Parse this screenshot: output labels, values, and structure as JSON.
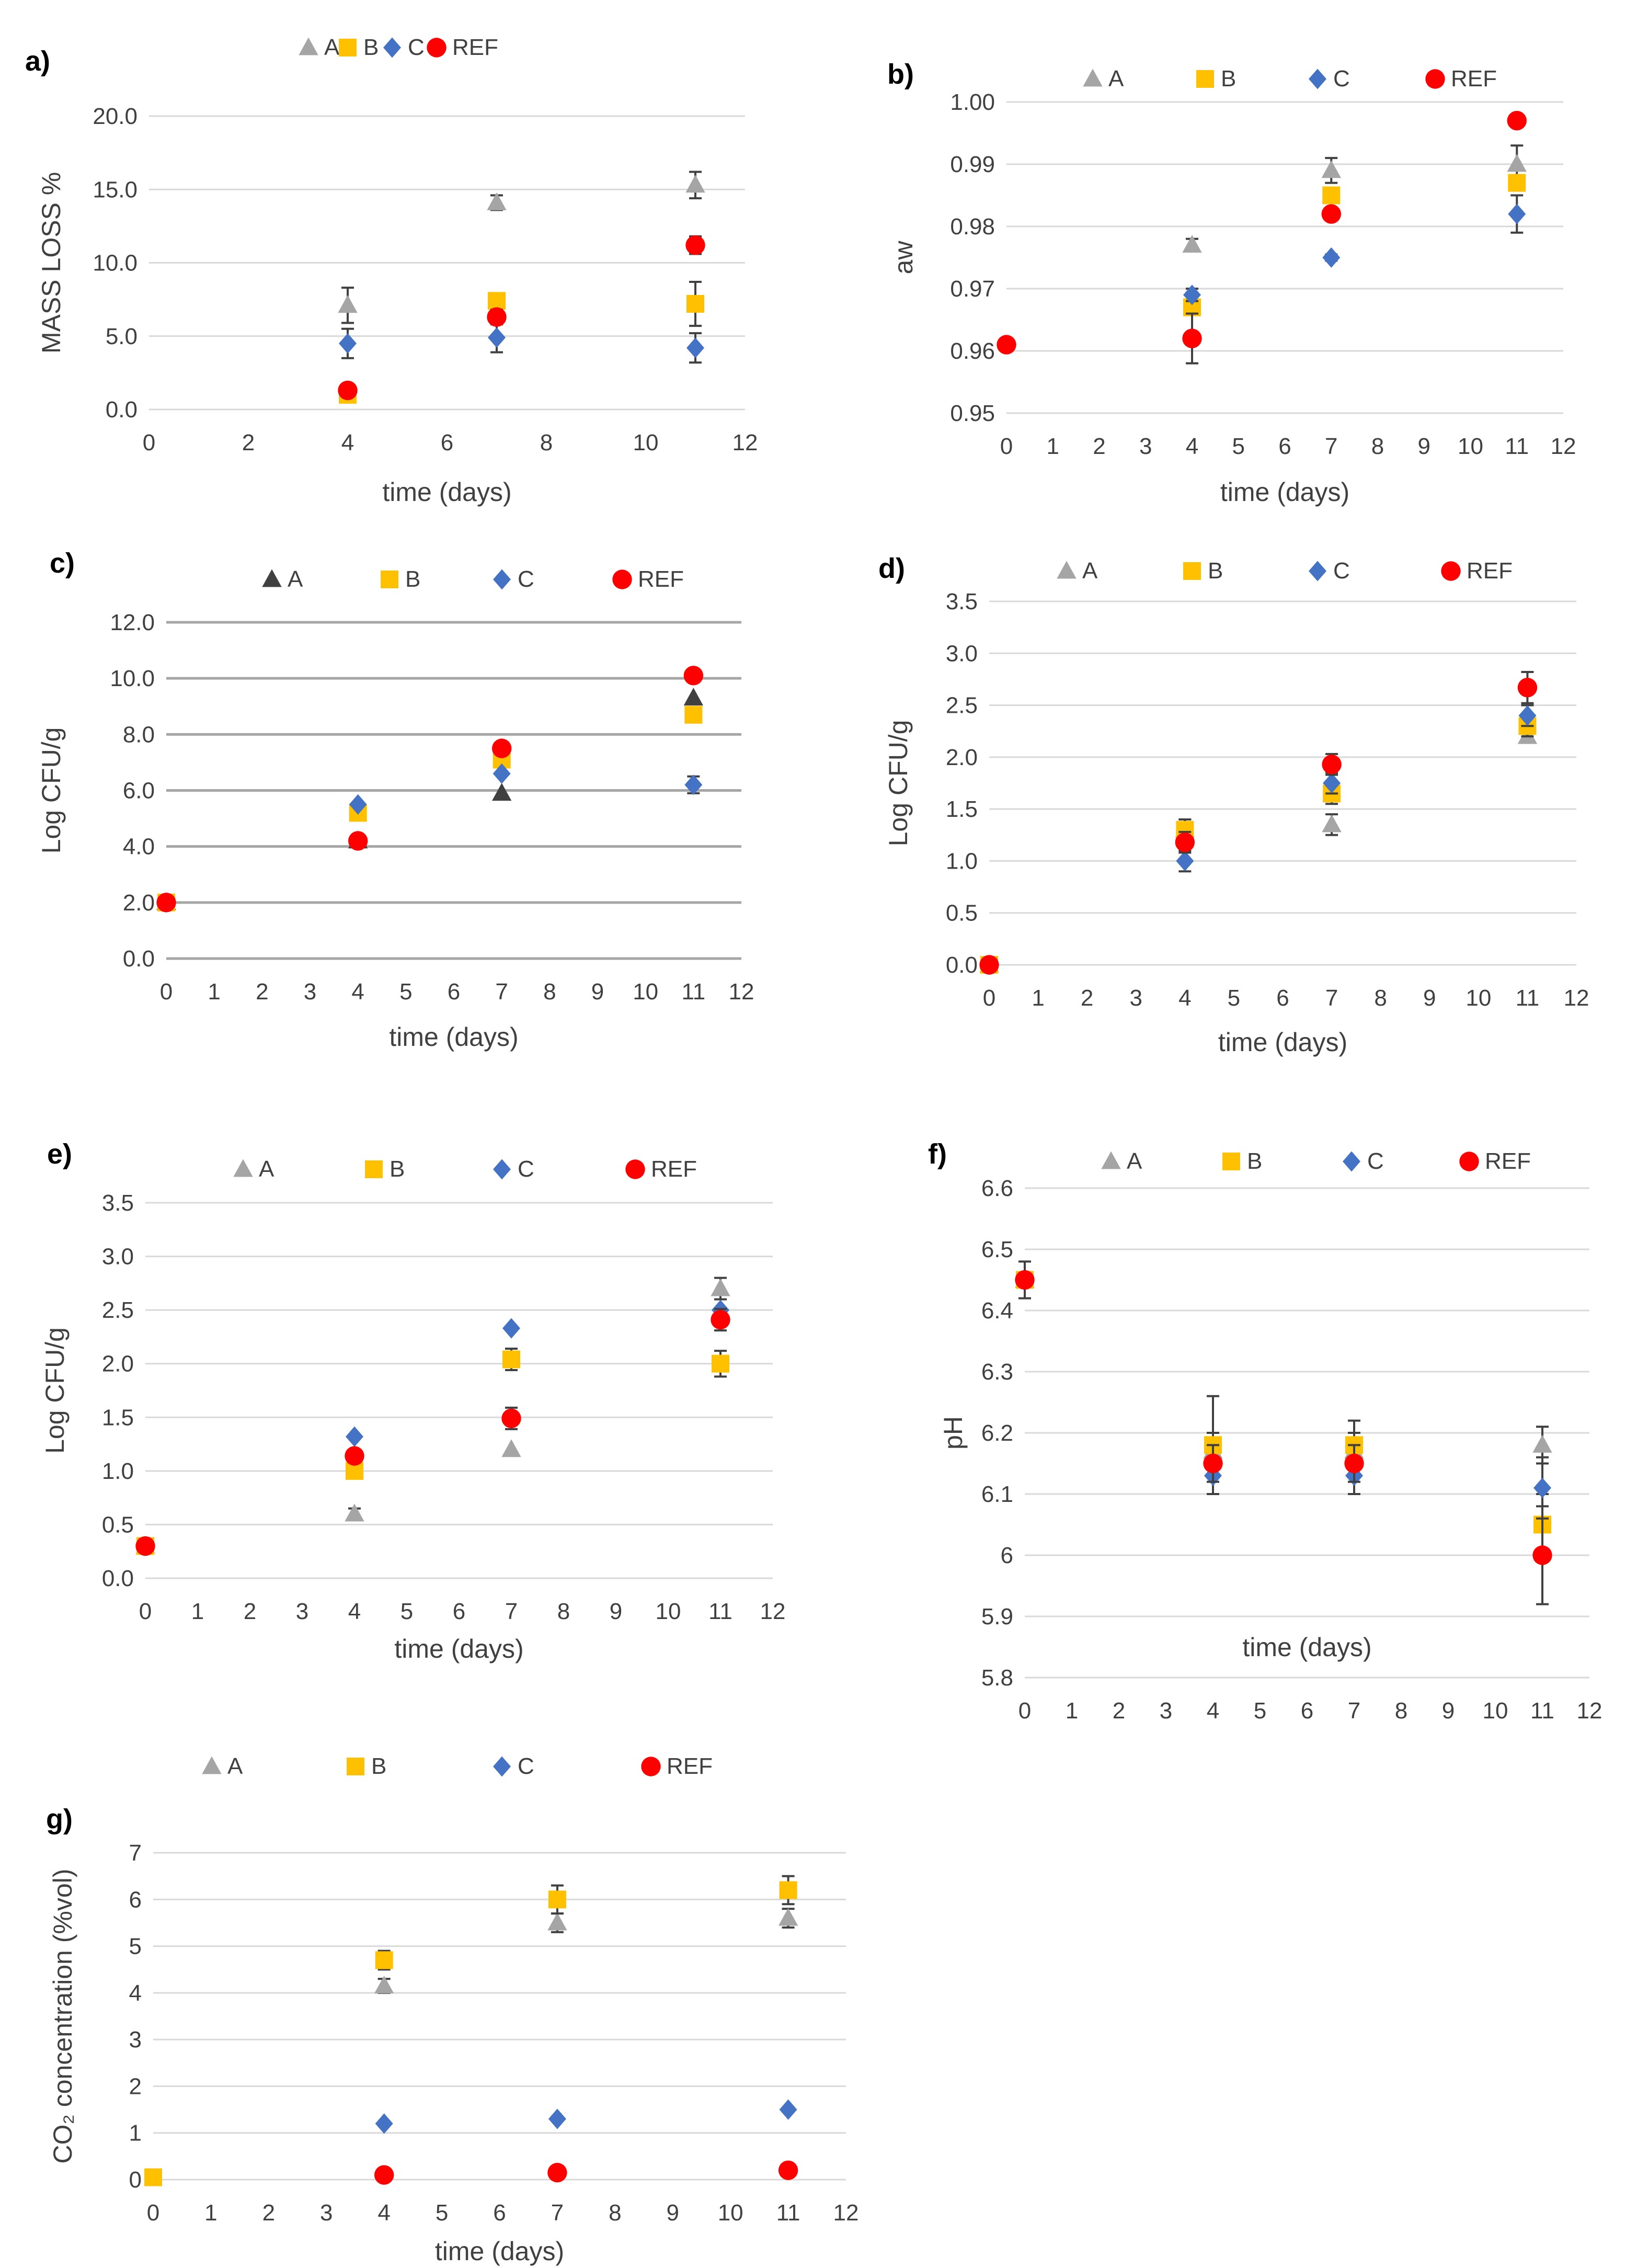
{
  "colors": {
    "A": "#a5a5a5",
    "A_dark": "#404040",
    "B": "#ffc000",
    "C": "#4472c4",
    "REF": "#ff0000"
  },
  "chart_data": [
    {
      "id": "a",
      "panel_label": "a)",
      "type": "scatter",
      "title": "",
      "xlabel": "time (days)",
      "ylabel": "MASS LOSS %",
      "xlim": [
        0,
        12
      ],
      "ylim": [
        0,
        20
      ],
      "xticks": [
        "0",
        "2",
        "4",
        "6",
        "8",
        "10",
        "12"
      ],
      "yticks": [
        "0.0",
        "5.0",
        "10.0",
        "15.0",
        "20.0"
      ],
      "grid": "horizontal",
      "legend": "top",
      "series": [
        {
          "name": "A",
          "marker": "triangle",
          "x": [
            4,
            7,
            11
          ],
          "y": [
            7.1,
            14.1,
            15.3
          ],
          "err": [
            1.2,
            0.5,
            0.9
          ]
        },
        {
          "name": "B",
          "marker": "square",
          "x": [
            4,
            7,
            11
          ],
          "y": [
            1.0,
            7.4,
            7.2
          ],
          "err": [
            0.3,
            0.3,
            1.5
          ]
        },
        {
          "name": "C",
          "marker": "diamond",
          "x": [
            4,
            7,
            11
          ],
          "y": [
            4.5,
            4.9,
            4.2
          ],
          "err": [
            1.0,
            1.0,
            1.0
          ]
        },
        {
          "name": "REF",
          "marker": "circle",
          "x": [
            4,
            7,
            11
          ],
          "y": [
            1.3,
            6.3,
            11.2
          ],
          "err": [
            0.3,
            0.5,
            0.6
          ]
        }
      ]
    },
    {
      "id": "b",
      "panel_label": "b)",
      "type": "scatter",
      "title": "",
      "xlabel": "time (days)",
      "ylabel": "aw",
      "xlim": [
        0,
        12
      ],
      "ylim": [
        0.95,
        1.0
      ],
      "xticks": [
        "0",
        "1",
        "2",
        "3",
        "4",
        "5",
        "6",
        "7",
        "8",
        "9",
        "10",
        "11",
        "12"
      ],
      "yticks": [
        "0.95",
        "0.96",
        "0.97",
        "0.98",
        "0.99",
        "1.00"
      ],
      "grid": "horizontal",
      "legend": "top",
      "series": [
        {
          "name": "A",
          "marker": "triangle",
          "x": [
            4,
            7,
            11
          ],
          "y": [
            0.977,
            0.989,
            0.99
          ],
          "err": [
            0.001,
            0.002,
            0.003
          ]
        },
        {
          "name": "B",
          "marker": "square",
          "x": [
            4,
            7,
            11
          ],
          "y": [
            0.967,
            0.985,
            0.987
          ],
          "err": [
            0.001,
            0.001,
            0.001
          ]
        },
        {
          "name": "C",
          "marker": "diamond",
          "x": [
            4,
            7,
            11
          ],
          "y": [
            0.969,
            0.975,
            0.982
          ],
          "err": [
            0.001,
            0.0005,
            0.003
          ]
        },
        {
          "name": "REF",
          "marker": "circle",
          "x": [
            0,
            4,
            7,
            11
          ],
          "y": [
            0.961,
            0.962,
            0.982,
            0.997
          ],
          "err": [
            0,
            0.004,
            0,
            0
          ]
        }
      ]
    },
    {
      "id": "c",
      "panel_label": "c)",
      "type": "scatter",
      "title": "",
      "xlabel": "time (days)",
      "ylabel": "Log CFU/g",
      "xlim": [
        0,
        12
      ],
      "ylim": [
        0,
        12
      ],
      "xticks": [
        "0",
        "1",
        "2",
        "3",
        "4",
        "5",
        "6",
        "7",
        "8",
        "9",
        "10",
        "11",
        "12"
      ],
      "yticks": [
        "0.0",
        "2.0",
        "4.0",
        "6.0",
        "8.0",
        "10.0",
        "12.0"
      ],
      "grid": "horizontal-dark",
      "legend": "top",
      "series": [
        {
          "name": "A",
          "marker": "triangle-dark",
          "x": [
            0,
            4,
            7,
            11
          ],
          "y": [
            2.0,
            4.2,
            5.9,
            9.3
          ],
          "err": [
            0,
            0.2,
            0,
            0
          ]
        },
        {
          "name": "B",
          "marker": "square",
          "x": [
            0,
            4,
            7,
            11
          ],
          "y": [
            2.0,
            5.2,
            7.1,
            8.7
          ],
          "err": [
            0,
            0,
            0.2,
            0
          ]
        },
        {
          "name": "C",
          "marker": "diamond",
          "x": [
            0,
            4,
            7,
            11
          ],
          "y": [
            2.0,
            5.5,
            6.6,
            6.2
          ],
          "err": [
            0,
            0,
            0,
            0.3
          ]
        },
        {
          "name": "REF",
          "marker": "circle",
          "x": [
            0,
            4,
            7,
            11
          ],
          "y": [
            2.0,
            4.2,
            7.5,
            10.1
          ],
          "err": [
            0,
            0,
            0,
            0
          ]
        }
      ]
    },
    {
      "id": "d",
      "panel_label": "d)",
      "type": "scatter",
      "title": "",
      "xlabel": "time (days)",
      "ylabel": "Log CFU/g",
      "xlim": [
        0,
        12
      ],
      "ylim": [
        0,
        3.5
      ],
      "xticks": [
        "0",
        "1",
        "2",
        "3",
        "4",
        "5",
        "6",
        "7",
        "8",
        "9",
        "10",
        "11",
        "12"
      ],
      "yticks": [
        "0.0",
        "0.5",
        "1.0",
        "1.5",
        "2.0",
        "2.5",
        "3.0",
        "3.5"
      ],
      "grid": "horizontal",
      "legend": "top",
      "series": [
        {
          "name": "A",
          "marker": "triangle",
          "x": [
            0,
            4,
            7,
            11
          ],
          "y": [
            0,
            1.3,
            1.35,
            2.2
          ],
          "err": [
            0,
            0.1,
            0.1,
            0.05
          ]
        },
        {
          "name": "B",
          "marker": "square",
          "x": [
            0,
            4,
            7,
            11
          ],
          "y": [
            0,
            1.3,
            1.65,
            2.3
          ],
          "err": [
            0,
            0.1,
            0.1,
            0.1
          ]
        },
        {
          "name": "C",
          "marker": "diamond",
          "x": [
            0,
            4,
            7,
            11
          ],
          "y": [
            0,
            1.0,
            1.75,
            2.4
          ],
          "err": [
            0,
            0.1,
            0.1,
            0.1
          ]
        },
        {
          "name": "REF",
          "marker": "circle",
          "x": [
            0,
            4,
            7,
            11
          ],
          "y": [
            0,
            1.18,
            1.93,
            2.67
          ],
          "err": [
            0,
            0.1,
            0.1,
            0.15
          ]
        }
      ]
    },
    {
      "id": "e",
      "panel_label": "e)",
      "type": "scatter",
      "title": "",
      "xlabel": "time (days)",
      "ylabel": "Log CFU/g",
      "xlim": [
        0,
        12
      ],
      "ylim": [
        0,
        3.5
      ],
      "xticks": [
        "0",
        "1",
        "2",
        "3",
        "4",
        "5",
        "6",
        "7",
        "8",
        "9",
        "10",
        "11",
        "12"
      ],
      "yticks": [
        "0.0",
        "0.5",
        "1.0",
        "1.5",
        "2.0",
        "2.5",
        "3.0",
        "3.5"
      ],
      "grid": "horizontal",
      "legend": "top",
      "series": [
        {
          "name": "A",
          "marker": "triangle",
          "x": [
            0,
            4,
            7,
            11
          ],
          "y": [
            0.3,
            0.6,
            1.2,
            2.7
          ],
          "err": [
            0,
            0.05,
            0,
            0.1
          ]
        },
        {
          "name": "B",
          "marker": "square",
          "x": [
            0,
            4,
            7,
            11
          ],
          "y": [
            0.3,
            1.0,
            2.04,
            2.0
          ],
          "err": [
            0,
            0,
            0.1,
            0.12
          ]
        },
        {
          "name": "C",
          "marker": "diamond",
          "x": [
            0,
            4,
            7,
            11
          ],
          "y": [
            0.3,
            1.32,
            2.33,
            2.5
          ],
          "err": [
            0,
            0,
            0,
            0
          ]
        },
        {
          "name": "REF",
          "marker": "circle",
          "x": [
            0,
            4,
            7,
            11
          ],
          "y": [
            0.3,
            1.14,
            1.49,
            2.41
          ],
          "err": [
            0,
            0.05,
            0.1,
            0.1
          ]
        }
      ]
    },
    {
      "id": "f",
      "panel_label": "f)",
      "type": "scatter",
      "title": "",
      "xlabel": "time (days)",
      "ylabel": "pH",
      "xlim": [
        0,
        12
      ],
      "ylim": [
        5.8,
        6.6
      ],
      "xticks": [
        "0",
        "1",
        "2",
        "3",
        "4",
        "5",
        "6",
        "7",
        "8",
        "9",
        "10",
        "11",
        "12"
      ],
      "yticks": [
        "5.8",
        "5.9",
        "6",
        "6.1",
        "6.2",
        "6.3",
        "6.4",
        "6.5",
        "6.6"
      ],
      "grid": "horizontal",
      "legend": "top",
      "series": [
        {
          "name": "A",
          "marker": "triangle",
          "x": [
            0,
            4,
            7,
            11
          ],
          "y": [
            6.45,
            6.17,
            6.17,
            6.18
          ],
          "err": [
            0,
            0.03,
            0.03,
            0.03
          ]
        },
        {
          "name": "B",
          "marker": "square",
          "x": [
            0,
            4,
            7,
            11
          ],
          "y": [
            6.45,
            6.18,
            6.18,
            6.05
          ],
          "err": [
            0,
            0.08,
            0.04,
            0.05
          ]
        },
        {
          "name": "C",
          "marker": "diamond",
          "x": [
            0,
            4,
            7,
            11
          ],
          "y": [
            6.45,
            6.13,
            6.13,
            6.11
          ],
          "err": [
            0,
            0.03,
            0.03,
            0.05
          ]
        },
        {
          "name": "REF",
          "marker": "circle",
          "x": [
            0,
            4,
            7,
            11
          ],
          "y": [
            6.45,
            6.15,
            6.15,
            6.0
          ],
          "err": [
            0.03,
            0.03,
            0.03,
            0.08
          ]
        }
      ]
    },
    {
      "id": "g",
      "panel_label": "g)",
      "type": "scatter",
      "title": "",
      "xlabel": "time (days)",
      "ylabel": "CO₂ concentration  (%vol)",
      "xlim": [
        0,
        12
      ],
      "ylim": [
        0,
        7
      ],
      "xticks": [
        "0",
        "1",
        "2",
        "3",
        "4",
        "5",
        "6",
        "7",
        "8",
        "9",
        "10",
        "11",
        "12"
      ],
      "yticks": [
        "0",
        "1",
        "2",
        "3",
        "4",
        "5",
        "6",
        "7"
      ],
      "grid": "horizontal",
      "legend": "top",
      "series": [
        {
          "name": "A",
          "marker": "triangle",
          "x": [
            4,
            7,
            11
          ],
          "y": [
            4.15,
            5.5,
            5.6
          ],
          "err": [
            0.15,
            0.2,
            0.2
          ]
        },
        {
          "name": "B",
          "marker": "square",
          "x": [
            0,
            4,
            7,
            11
          ],
          "y": [
            0.05,
            4.7,
            6.0,
            6.2
          ],
          "err": [
            0,
            0.2,
            0.3,
            0.3
          ]
        },
        {
          "name": "C",
          "marker": "diamond",
          "x": [
            4,
            7,
            11
          ],
          "y": [
            1.2,
            1.3,
            1.5
          ],
          "err": [
            0,
            0,
            0
          ]
        },
        {
          "name": "REF",
          "marker": "circle",
          "x": [
            4,
            7,
            11
          ],
          "y": [
            0.1,
            0.15,
            0.2
          ],
          "err": [
            0,
            0,
            0
          ]
        }
      ]
    }
  ]
}
